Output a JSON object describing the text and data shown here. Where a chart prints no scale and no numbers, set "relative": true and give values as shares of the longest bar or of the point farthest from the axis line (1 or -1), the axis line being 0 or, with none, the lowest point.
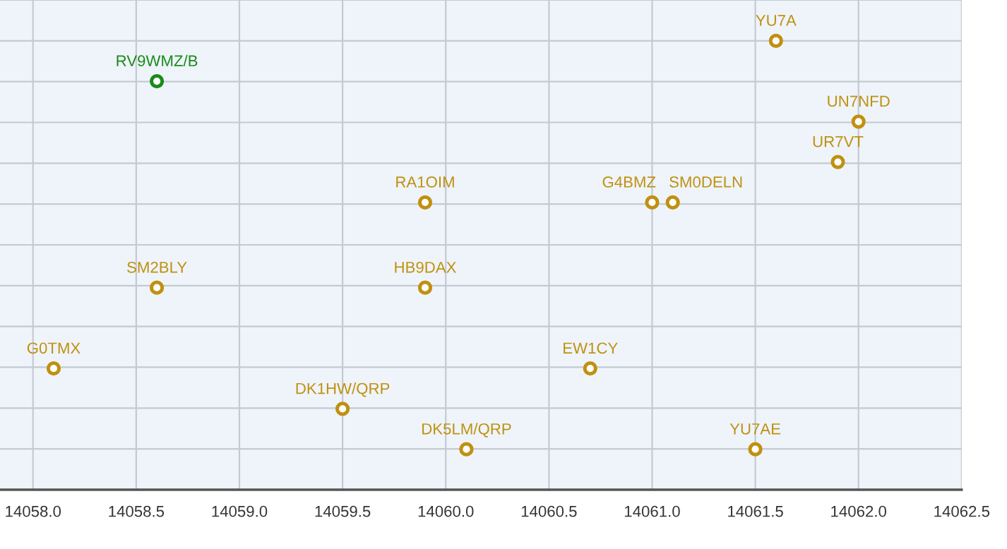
{
  "chart_data": {
    "type": "scatter",
    "relative": true,
    "marker": "circle",
    "grid": true,
    "tick_labels": "x",
    "xlim": [
      14057.84,
      14062.5
    ],
    "xticks": [
      {
        "value": 14058.0,
        "label": "14058.0"
      },
      {
        "value": 14058.5,
        "label": "14058.5"
      },
      {
        "value": 14059.0,
        "label": "14059.0"
      },
      {
        "value": 14059.5,
        "label": "14059.5"
      },
      {
        "value": 14060.0,
        "label": "14060.0"
      },
      {
        "value": 14060.5,
        "label": "14060.5"
      },
      {
        "value": 14061.0,
        "label": "14061.0"
      },
      {
        "value": 14061.5,
        "label": "14061.5"
      },
      {
        "value": 14062.0,
        "label": "14062.0"
      },
      {
        "value": 14062.5,
        "label": "14062.5"
      }
    ],
    "series": [
      {
        "color": "#c09010",
        "x": [
          14061.6,
          14062.0,
          14061.9,
          14059.9,
          14061.0,
          14061.1,
          14058.6,
          14059.9,
          14058.1,
          14060.7,
          14059.5,
          14060.1,
          14061.5
        ],
        "values": [
          1,
          0.82,
          0.73,
          0.64,
          0.64,
          0.64,
          0.45,
          0.45,
          0.27,
          0.27,
          0.18,
          0.09,
          0.09
        ]
      },
      {
        "color": "#1a8a1a",
        "x": [
          14058.6
        ],
        "values": [
          0.91
        ]
      }
    ],
    "annotations": [
      {
        "text": "YU7A",
        "x": 14061.6,
        "y": 1
      },
      {
        "text": "RV9WMZ/B",
        "x": 14058.6,
        "y": 0.91
      },
      {
        "text": "UN7NFD",
        "x": 14062.0,
        "y": 0.82
      },
      {
        "text": "UR7VT",
        "x": 14061.9,
        "y": 0.73
      },
      {
        "text": "RA1OIM",
        "x": 14059.9,
        "y": 0.64
      },
      {
        "text": "G4BMZ",
        "x": 14061.0,
        "y": 0.64
      },
      {
        "text": "SM0DELN",
        "x": 14061.1,
        "y": 0.64
      },
      {
        "text": "SM2BLY",
        "x": 14058.6,
        "y": 0.45
      },
      {
        "text": "HB9DAX",
        "x": 14059.9,
        "y": 0.45
      },
      {
        "text": "G0TMX",
        "x": 14058.1,
        "y": 0.27
      },
      {
        "text": "EW1CY",
        "x": 14060.7,
        "y": 0.27
      },
      {
        "text": "DK1HW/QRP",
        "x": 14059.5,
        "y": 0.18
      },
      {
        "text": "DK5LM/QRP",
        "x": 14060.1,
        "y": 0.09
      },
      {
        "text": "YU7AE",
        "x": 14061.5,
        "y": 0.09
      }
    ]
  }
}
